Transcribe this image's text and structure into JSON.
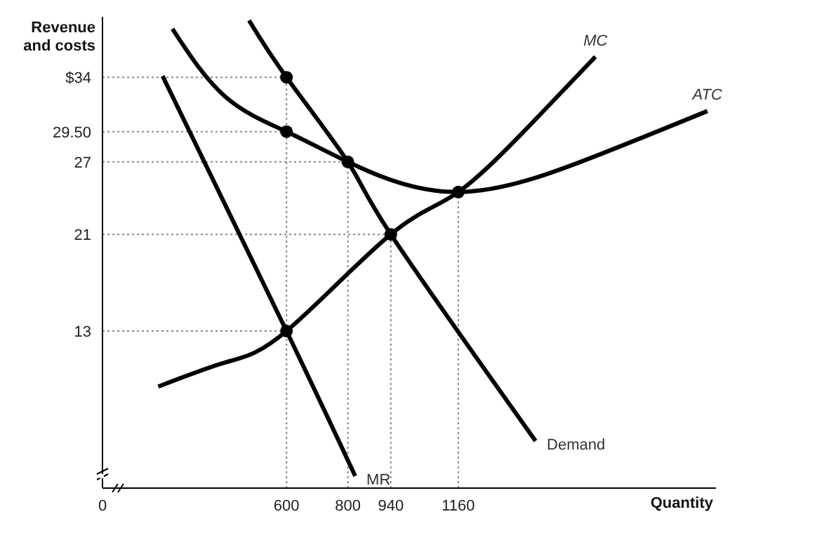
{
  "chart_data": {
    "type": "line",
    "ylabel": "Revenue and costs",
    "xlabel": "Quantity",
    "xlim": [
      0,
      2000
    ],
    "ylim": [
      0,
      39
    ],
    "xticks": [
      0,
      600,
      800,
      940,
      1160
    ],
    "yticks": [
      {
        "value": 13,
        "label": "13"
      },
      {
        "value": 21,
        "label": "21"
      },
      {
        "value": 27,
        "label": "27"
      },
      {
        "value": 29.5,
        "label": "29.50"
      },
      {
        "value": 34,
        "label": "$34"
      }
    ],
    "grid": false,
    "legend": false,
    "tick_labels": "xy",
    "series": [
      {
        "name": "Demand",
        "color": "#000000",
        "x": [
          478,
          600,
          800,
          940,
          1412
        ],
        "values": [
          38.7,
          34,
          27,
          21,
          3.9
        ]
      },
      {
        "name": "MR",
        "color": "#000000",
        "x": [
          196,
          600,
          824
        ],
        "values": [
          34.1,
          13,
          1.0
        ]
      },
      {
        "name": "MC",
        "color": "#000000",
        "x": [
          182,
          400,
          600,
          940,
          1160,
          1400,
          1607
        ],
        "values": [
          8.4,
          10.4,
          13,
          21,
          24.5,
          30.2,
          35.7
        ]
      },
      {
        "name": "ATC",
        "color": "#000000",
        "x": [
          228,
          400,
          600,
          800,
          1160,
          1600,
          1972
        ],
        "values": [
          38,
          32.4,
          29.5,
          27,
          24.5,
          27.4,
          31.2
        ]
      },
      {
        "type": "scatter",
        "color": "#000000",
        "marker": "circle",
        "x": [
          600,
          600,
          800,
          940,
          1160,
          600
        ],
        "values": [
          34,
          29.5,
          27,
          21,
          24.5,
          13
        ]
      }
    ],
    "ref_lines": [
      {
        "axis": "y",
        "value": 34,
        "color": "#888888",
        "line_style": "dotted"
      },
      {
        "axis": "y",
        "value": 29.5,
        "color": "#888888",
        "line_style": "dotted"
      },
      {
        "axis": "y",
        "value": 27,
        "color": "#888888",
        "line_style": "dotted"
      },
      {
        "axis": "y",
        "value": 21,
        "color": "#888888",
        "line_style": "dotted"
      },
      {
        "axis": "y",
        "value": 13,
        "color": "#888888",
        "line_style": "dotted"
      },
      {
        "axis": "x",
        "value": 600,
        "color": "#888888",
        "line_style": "dotted"
      },
      {
        "axis": "x",
        "value": 800,
        "color": "#888888",
        "line_style": "dotted"
      },
      {
        "axis": "x",
        "value": 940,
        "color": "#888888",
        "line_style": "dotted"
      },
      {
        "axis": "x",
        "value": 1160,
        "color": "#888888",
        "line_style": "dotted"
      }
    ]
  }
}
